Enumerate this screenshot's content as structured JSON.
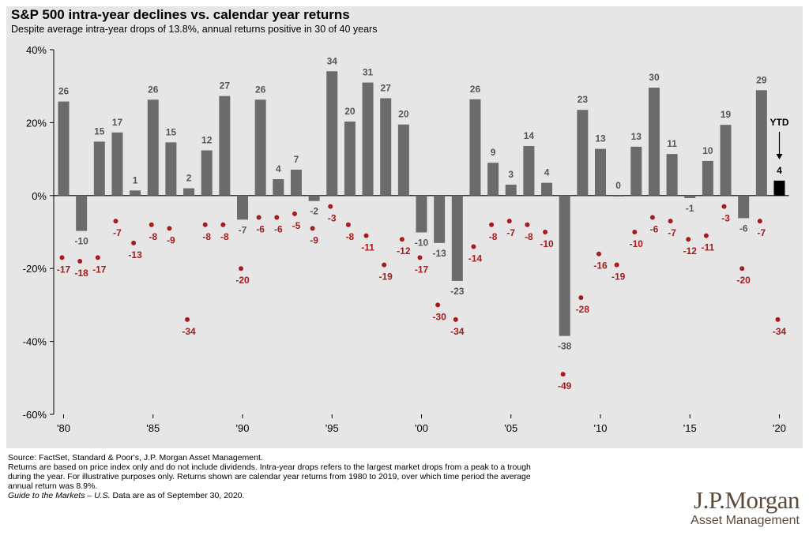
{
  "colors": {
    "bar": "#6b6b6b",
    "ytd_bar": "#000000",
    "dot": "#a51c1c",
    "axis": "#000000",
    "panel": "#e6e6e6"
  },
  "chart_data": {
    "type": "bar",
    "title": "S&P 500 intra-year declines vs. calendar year returns",
    "subtitle": "Despite average intra-year drops of 13.8%, annual returns positive in 30 of 40 years",
    "ylim": [
      -60,
      40
    ],
    "y_ticks": [
      40,
      20,
      0,
      -20,
      -40,
      -60
    ],
    "y_tick_labels": [
      "40%",
      "20%",
      "0%",
      "-20%",
      "-40%",
      "-60%"
    ],
    "x_tick_labels": [
      {
        "year": 1980,
        "label": "'80"
      },
      {
        "year": 1985,
        "label": "'85"
      },
      {
        "year": 1990,
        "label": "'90"
      },
      {
        "year": 1995,
        "label": "'95"
      },
      {
        "year": 2000,
        "label": "'00"
      },
      {
        "year": 2005,
        "label": "'05"
      },
      {
        "year": 2010,
        "label": "'10"
      },
      {
        "year": 2015,
        "label": "'15"
      },
      {
        "year": 2020,
        "label": "'20"
      }
    ],
    "years": [
      1980,
      1981,
      1982,
      1983,
      1984,
      1985,
      1986,
      1987,
      1988,
      1989,
      1990,
      1991,
      1992,
      1993,
      1994,
      1995,
      1996,
      1997,
      1998,
      1999,
      2000,
      2001,
      2002,
      2003,
      2004,
      2005,
      2006,
      2007,
      2008,
      2009,
      2010,
      2011,
      2012,
      2013,
      2014,
      2015,
      2016,
      2017,
      2018,
      2019,
      2020
    ],
    "series": [
      {
        "type": "bar",
        "values": [
          26,
          -10,
          15,
          17,
          1,
          26,
          15,
          2,
          12,
          27,
          -7,
          26,
          4,
          7,
          -2,
          34,
          20,
          31,
          27,
          20,
          -10,
          -13,
          -23,
          26,
          9,
          3,
          14,
          4,
          -38,
          23,
          13,
          0,
          13,
          30,
          11,
          -1,
          10,
          19,
          -6,
          29,
          4
        ],
        "bar_heights": [
          25.8,
          -9.7,
          14.8,
          17.3,
          1.4,
          26.3,
          14.6,
          2.0,
          12.4,
          27.3,
          -6.6,
          26.3,
          4.5,
          7.1,
          -1.5,
          34.1,
          20.3,
          31.0,
          26.7,
          19.5,
          -10.1,
          -13.0,
          -23.4,
          26.4,
          9.0,
          3.0,
          13.6,
          3.5,
          -38.5,
          23.5,
          12.8,
          0.0,
          13.4,
          29.6,
          11.4,
          -0.7,
          9.5,
          19.4,
          -6.2,
          28.9,
          4.1
        ]
      },
      {
        "type": "scatter",
        "values": [
          -17,
          -18,
          -17,
          -7,
          -13,
          -8,
          -9,
          -34,
          -8,
          -8,
          -20,
          -6,
          -6,
          -5,
          -9,
          -3,
          -8,
          -11,
          -19,
          -12,
          -17,
          -30,
          -34,
          -14,
          -8,
          -7,
          -8,
          -10,
          -49,
          -28,
          -16,
          -19,
          -10,
          -6,
          -7,
          -12,
          -11,
          -3,
          -20,
          -7,
          -34
        ]
      }
    ],
    "ytd": {
      "year": 2020,
      "label": "YTD"
    }
  },
  "footer": {
    "line1": "Source: FactSet, Standard & Poor's, J.P. Morgan Asset Management.",
    "line2": "Returns are based on price index only and do not include dividends. Intra-year drops refers to the largest market drops from a peak to a trough",
    "line3": "during the year. For illustrative purposes only. Returns shown are calendar year returns from 1980 to 2019, over which time period the average",
    "line4": "annual return was 8.9%.",
    "guide_italic": "Guide to the Markets – U.S.",
    "guide_rest": " Data are as of September 30, 2020."
  },
  "logo": {
    "main": "J.P.Morgan",
    "sub": "Asset Management"
  }
}
